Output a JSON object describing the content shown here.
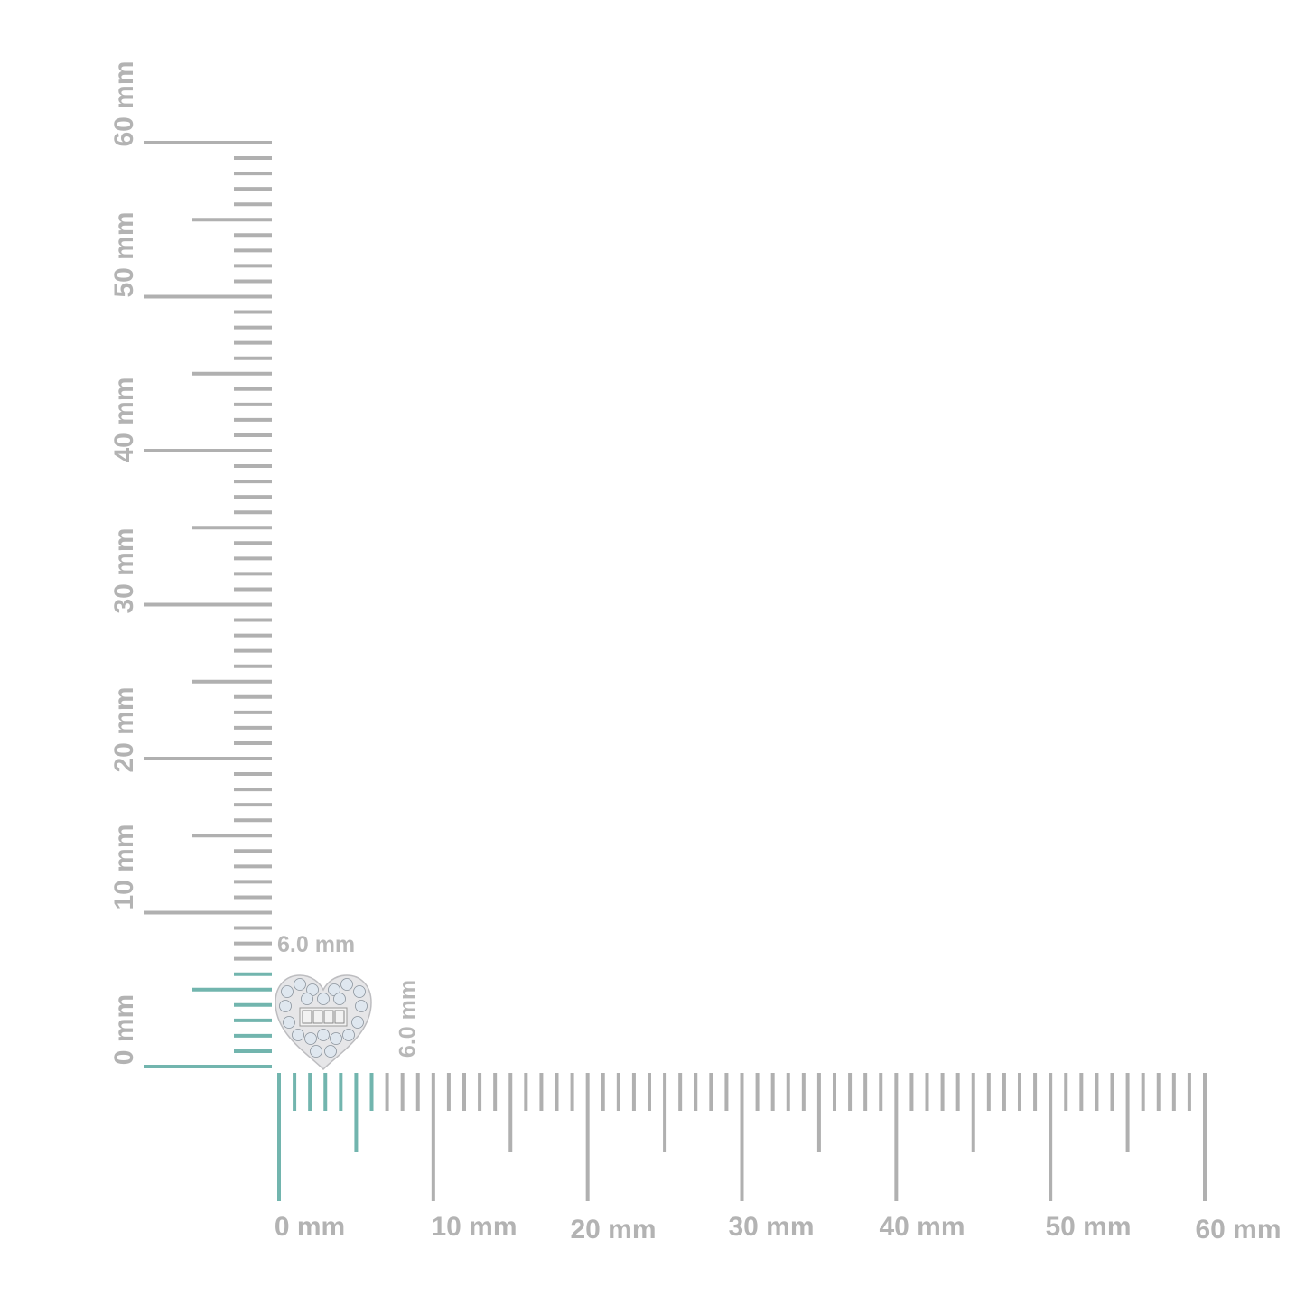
{
  "horizontal_ruler": {
    "labels": [
      "0 mm",
      "10 mm",
      "20 mm",
      "30 mm",
      "40 mm",
      "50 mm",
      "60 mm"
    ],
    "range_mm": [
      0,
      60
    ]
  },
  "vertical_ruler": {
    "labels": [
      "0 mm",
      "10 mm",
      "20 mm",
      "30 mm",
      "40 mm",
      "50 mm",
      "60 mm"
    ],
    "range_mm": [
      0,
      60
    ]
  },
  "product": {
    "width_label": "6.0 mm",
    "height_label": "6.0 mm",
    "width_mm": 6.0,
    "height_mm": 6.0,
    "shape": "heart-earring"
  },
  "colors": {
    "tick": "#b0b0b0",
    "highlight": "#72b5ae",
    "label": "#b3b3b3"
  }
}
